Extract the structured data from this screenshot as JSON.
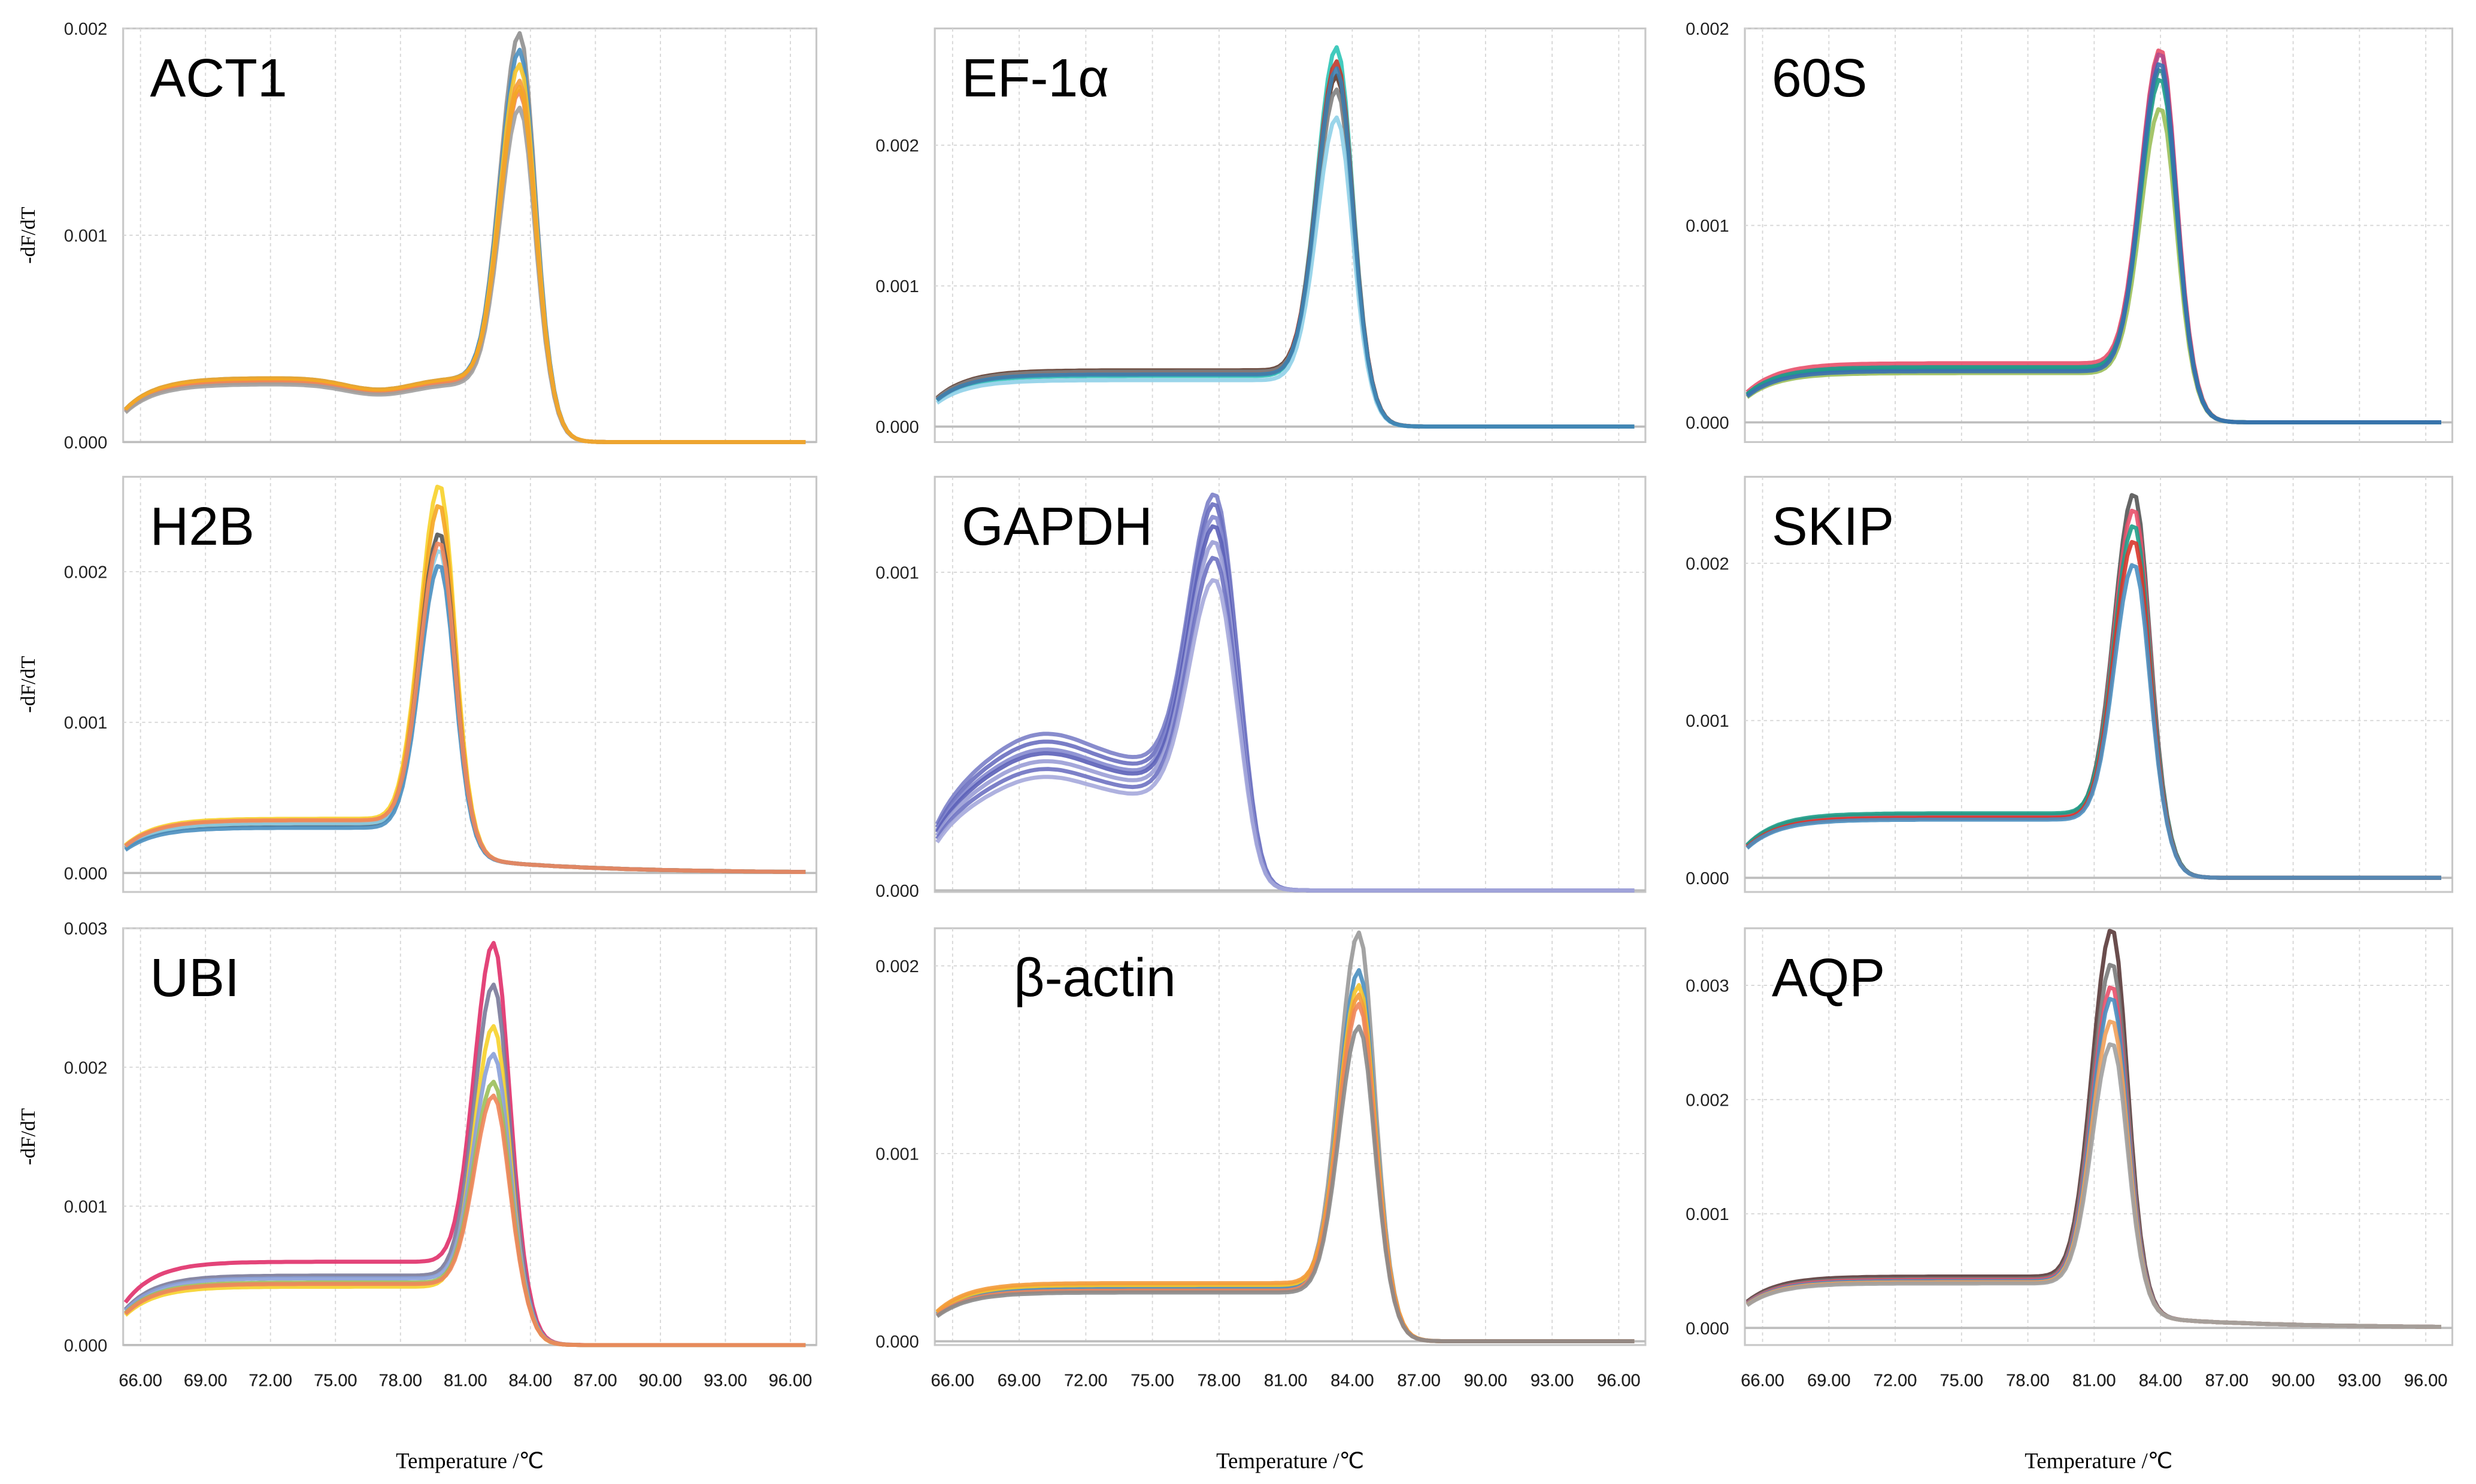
{
  "chart_data": {
    "type": "line",
    "xlabel": "Temperature /℃",
    "ylabel": "-dF/dT",
    "x_ticks": [
      "66.00",
      "69.00",
      "72.00",
      "75.00",
      "78.00",
      "81.00",
      "84.00",
      "87.00",
      "90.00",
      "93.00",
      "96.00"
    ],
    "xlim": [
      65.2,
      97.2
    ],
    "grid": true,
    "panels": [
      {
        "title": "ACT1",
        "ylim": [
          0,
          0.002
        ],
        "yticks": [
          "0.000",
          "0.001",
          "0.002"
        ],
        "tm": 83.5,
        "dip": true,
        "series": [
          {
            "color": "#8f8f8f",
            "peak": 0.00198,
            "plateau": 0.0003
          },
          {
            "color": "#4a8fc0",
            "peak": 0.0019,
            "plateau": 0.00031
          },
          {
            "color": "#f6c42a",
            "peak": 0.00183,
            "plateau": 0.0003
          },
          {
            "color": "#f39a3a",
            "peak": 0.00175,
            "plateau": 0.00029
          },
          {
            "color": "#f0855a",
            "peak": 0.0017,
            "plateau": 0.00029
          },
          {
            "color": "#a0a0a0",
            "peak": 0.00162,
            "plateau": 0.00028
          },
          {
            "color": "#f5a623",
            "peak": 0.00172,
            "plateau": 0.00031
          }
        ]
      },
      {
        "title": "EF-1α",
        "ylim": [
          -0.00011,
          0.00283
        ],
        "yticks": [
          "0.000",
          "0.001",
          "0.002"
        ],
        "tm": 83.3,
        "series": [
          {
            "color": "#2ec4b6",
            "peak": 0.0027,
            "plateau": 0.00036
          },
          {
            "color": "#5d3a2e",
            "peak": 0.0025,
            "plateau": 0.0004
          },
          {
            "color": "#c0392b",
            "peak": 0.0026,
            "plateau": 0.00038
          },
          {
            "color": "#7f7f7f",
            "peak": 0.0024,
            "plateau": 0.00039
          },
          {
            "color": "#8fd0e8",
            "peak": 0.0022,
            "plateau": 0.00033
          },
          {
            "color": "#3a7fb0",
            "peak": 0.00255,
            "plateau": 0.00037
          }
        ]
      },
      {
        "title": "60S",
        "ylim": [
          -0.0001,
          0.002
        ],
        "yticks": [
          "0.000",
          "0.001",
          "0.002"
        ],
        "tm": 84.0,
        "series": [
          {
            "color": "#e8506a",
            "peak": 0.0019,
            "plateau": 0.0003
          },
          {
            "color": "#b24a8a",
            "peak": 0.00188,
            "plateau": 0.00028
          },
          {
            "color": "#2a8a8a",
            "peak": 0.0018,
            "plateau": 0.00027
          },
          {
            "color": "#9bbf5a",
            "peak": 0.0016,
            "plateau": 0.00025
          },
          {
            "color": "#1f9e89",
            "peak": 0.00175,
            "plateau": 0.00028
          },
          {
            "color": "#3a6fb0",
            "peak": 0.00183,
            "plateau": 0.00026
          }
        ]
      },
      {
        "title": "H2B",
        "ylim": [
          -0.000126,
          0.00263
        ],
        "yticks": [
          "0.000",
          "0.001",
          "0.002"
        ],
        "tm": 79.8,
        "tail": true,
        "series": [
          {
            "color": "#f7d22a",
            "peak": 0.00258,
            "plateau": 0.00036
          },
          {
            "color": "#f5a623",
            "peak": 0.00245,
            "plateau": 0.00034
          },
          {
            "color": "#555555",
            "peak": 0.00226,
            "plateau": 0.00032
          },
          {
            "color": "#8fd0e8",
            "peak": 0.00215,
            "plateau": 0.00033
          },
          {
            "color": "#4a8fc0",
            "peak": 0.00205,
            "plateau": 0.0003
          },
          {
            "color": "#f0855a",
            "peak": 0.0022,
            "plateau": 0.00035
          }
        ]
      },
      {
        "title": "GAPDH",
        "ylim": [
          -5e-06,
          0.0013
        ],
        "yticks": [
          "0.000",
          "0.001"
        ],
        "tm": 77.8,
        "broad": true,
        "series": [
          {
            "color": "#7b7fc8",
            "peak": 0.00125,
            "plateau": 0.0004
          },
          {
            "color": "#6a6fc0",
            "peak": 0.00122,
            "plateau": 0.00038
          },
          {
            "color": "#8589cf",
            "peak": 0.00118,
            "plateau": 0.00036
          },
          {
            "color": "#5c61b8",
            "peak": 0.00115,
            "plateau": 0.00035
          },
          {
            "color": "#9a9dd6",
            "peak": 0.0011,
            "plateau": 0.00033
          },
          {
            "color": "#6e72c2",
            "peak": 0.00105,
            "plateau": 0.00031
          },
          {
            "color": "#a5a8dc",
            "peak": 0.00098,
            "plateau": 0.00029
          }
        ]
      },
      {
        "title": "SKIP",
        "ylim": [
          -9e-05,
          0.00255
        ],
        "yticks": [
          "0.000",
          "0.001",
          "0.002"
        ],
        "tm": 82.8,
        "series": [
          {
            "color": "#555555",
            "peak": 0.00245,
            "plateau": 0.0004
          },
          {
            "color": "#e8506a",
            "peak": 0.00235,
            "plateau": 0.00039
          },
          {
            "color": "#1f9e89",
            "peak": 0.00225,
            "plateau": 0.00041
          },
          {
            "color": "#d9362b",
            "peak": 0.00215,
            "plateau": 0.00038
          },
          {
            "color": "#4a8fc0",
            "peak": 0.002,
            "plateau": 0.00037
          }
        ]
      },
      {
        "title": "UBI",
        "ylim": [
          0,
          0.003
        ],
        "yticks": [
          "0.000",
          "0.001",
          "0.002",
          "0.003"
        ],
        "tm": 82.3,
        "series": [
          {
            "color": "#e0306a",
            "peak": 0.0029,
            "plateau": 0.0006
          },
          {
            "color": "#7a7a9a",
            "peak": 0.0026,
            "plateau": 0.0005
          },
          {
            "color": "#f6d22a",
            "peak": 0.0023,
            "plateau": 0.00042
          },
          {
            "color": "#8aa0d8",
            "peak": 0.0021,
            "plateau": 0.00048
          },
          {
            "color": "#9bbf5a",
            "peak": 0.0019,
            "plateau": 0.00045
          },
          {
            "color": "#f0855a",
            "peak": 0.0018,
            "plateau": 0.00044
          }
        ]
      },
      {
        "title": "β-actin",
        "ylim": [
          -2e-05,
          0.0022
        ],
        "yticks": [
          "0.000",
          "0.001",
          "0.002"
        ],
        "tm": 84.3,
        "series": [
          {
            "color": "#999999",
            "peak": 0.00218,
            "plateau": 0.00029
          },
          {
            "color": "#4a8fc0",
            "peak": 0.00198,
            "plateau": 0.00028
          },
          {
            "color": "#f6c42a",
            "peak": 0.0019,
            "plateau": 0.0003
          },
          {
            "color": "#f39a3a",
            "peak": 0.00185,
            "plateau": 0.00031
          },
          {
            "color": "#f0855a",
            "peak": 0.0018,
            "plateau": 0.00027
          },
          {
            "color": "#8a8a8a",
            "peak": 0.00168,
            "plateau": 0.00026
          }
        ]
      },
      {
        "title": "AQP",
        "ylim": [
          -0.00015,
          0.0035
        ],
        "yticks": [
          "0.000",
          "0.001",
          "0.002",
          "0.003"
        ],
        "tm": 81.8,
        "tail": true,
        "series": [
          {
            "color": "#5a3a3a",
            "peak": 0.0035,
            "plateau": 0.00045
          },
          {
            "color": "#7a7a7a",
            "peak": 0.0032,
            "plateau": 0.00043
          },
          {
            "color": "#e8506a",
            "peak": 0.003,
            "plateau": 0.00042
          },
          {
            "color": "#4a8fc0",
            "peak": 0.0029,
            "plateau": 0.00041
          },
          {
            "color": "#f0a05a",
            "peak": 0.0027,
            "plateau": 0.0004
          },
          {
            "color": "#a0a0a0",
            "peak": 0.0025,
            "plateau": 0.00039
          }
        ]
      }
    ]
  }
}
